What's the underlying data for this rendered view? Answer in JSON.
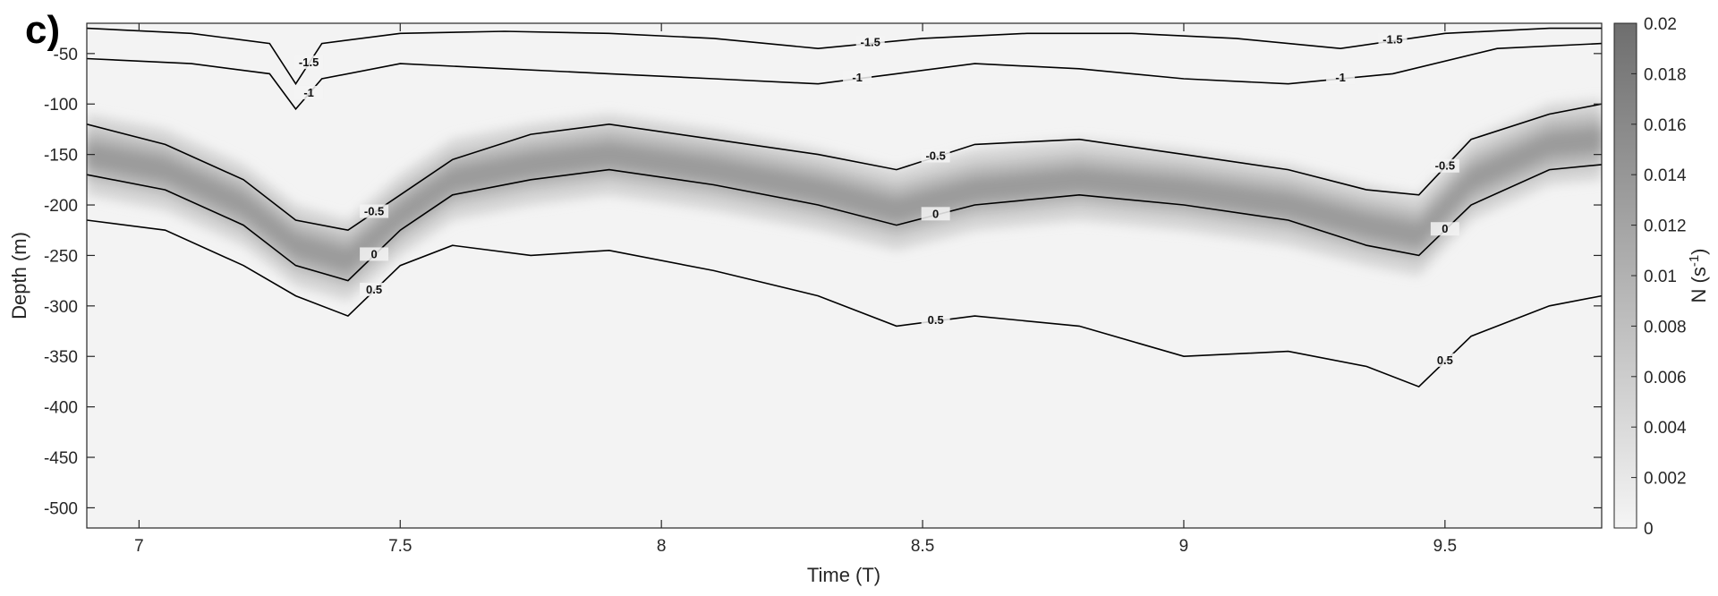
{
  "chart_data": {
    "type": "heatmap",
    "panel_label": "c)",
    "xlabel": "Time (T)",
    "ylabel": "Depth (m)",
    "xlim": [
      6.9,
      9.8
    ],
    "ylim": [
      -520,
      -20
    ],
    "x_ticks": [
      7,
      7.5,
      8,
      8.5,
      9,
      9.5
    ],
    "x_tick_labels": [
      "7",
      "7.5",
      "8",
      "8.5",
      "9",
      "9.5"
    ],
    "y_ticks": [
      -50,
      -100,
      -150,
      -200,
      -250,
      -300,
      -350,
      -400,
      -450,
      -500
    ],
    "y_tick_labels": [
      "-50",
      "-100",
      "-150",
      "-200",
      "-250",
      "-300",
      "-350",
      "-400",
      "-450",
      "-500"
    ],
    "colorbar": {
      "label": "N (s",
      "label_superscript": "-1",
      "label_close": ")",
      "range": [
        0,
        0.02
      ],
      "ticks": [
        0,
        0.002,
        0.004,
        0.006,
        0.008,
        0.01,
        0.012,
        0.014,
        0.016,
        0.018,
        0.02
      ],
      "tick_labels": [
        "0",
        "0.002",
        "0.004",
        "0.006",
        "0.008",
        "0.01",
        "0.012",
        "0.014",
        "0.016",
        "0.018",
        "0.02"
      ],
      "colors": [
        "#f5f5f5",
        "#6e6e6e"
      ]
    },
    "stratification_band": {
      "time": [
        6.9,
        7.05,
        7.2,
        7.3,
        7.4,
        7.5,
        7.6,
        7.75,
        7.9,
        8.1,
        8.3,
        8.45,
        8.6,
        8.8,
        9.0,
        9.2,
        9.35,
        9.45,
        9.55,
        9.7,
        9.8
      ],
      "center_depth": [
        -150,
        -165,
        -200,
        -240,
        -255,
        -210,
        -175,
        -160,
        -150,
        -165,
        -185,
        -205,
        -185,
        -175,
        -185,
        -200,
        -220,
        -230,
        -175,
        -140,
        -135
      ],
      "peak_N": [
        0.013,
        0.014,
        0.015,
        0.016,
        0.015,
        0.016,
        0.014,
        0.013,
        0.014,
        0.013,
        0.012,
        0.012,
        0.013,
        0.012,
        0.012,
        0.013,
        0.014,
        0.016,
        0.012,
        0.011,
        0.011
      ]
    },
    "contour_lines": [
      {
        "label": "-1.5",
        "time": [
          6.9,
          7.1,
          7.25,
          7.3,
          7.35,
          7.5,
          7.7,
          7.9,
          8.1,
          8.3,
          8.5,
          8.7,
          8.9,
          9.1,
          9.3,
          9.5,
          9.7,
          9.8
        ],
        "depth": [
          -25,
          -30,
          -40,
          -80,
          -40,
          -30,
          -28,
          -30,
          -35,
          -45,
          -35,
          -30,
          -30,
          -35,
          -45,
          -30,
          -25,
          -25
        ]
      },
      {
        "label": "-1",
        "time": [
          6.9,
          7.1,
          7.25,
          7.3,
          7.35,
          7.5,
          7.7,
          7.9,
          8.1,
          8.3,
          8.45,
          8.6,
          8.8,
          9.0,
          9.2,
          9.4,
          9.6,
          9.8
        ],
        "depth": [
          -55,
          -60,
          -70,
          -105,
          -75,
          -60,
          -65,
          -70,
          -75,
          -80,
          -70,
          -60,
          -65,
          -75,
          -80,
          -70,
          -45,
          -40
        ]
      },
      {
        "label": "-0.5",
        "time": [
          6.9,
          7.05,
          7.2,
          7.3,
          7.4,
          7.5,
          7.6,
          7.75,
          7.9,
          8.1,
          8.3,
          8.45,
          8.6,
          8.8,
          9.0,
          9.2,
          9.35,
          9.45,
          9.55,
          9.7,
          9.8
        ],
        "depth": [
          -120,
          -140,
          -175,
          -215,
          -225,
          -190,
          -155,
          -130,
          -120,
          -135,
          -150,
          -165,
          -140,
          -135,
          -150,
          -165,
          -185,
          -190,
          -135,
          -110,
          -100
        ]
      },
      {
        "label": "0",
        "time": [
          6.9,
          7.05,
          7.2,
          7.3,
          7.4,
          7.5,
          7.6,
          7.75,
          7.9,
          8.1,
          8.3,
          8.45,
          8.6,
          8.8,
          9.0,
          9.2,
          9.35,
          9.45,
          9.55,
          9.7,
          9.8
        ],
        "depth": [
          -170,
          -185,
          -220,
          -260,
          -275,
          -225,
          -190,
          -175,
          -165,
          -180,
          -200,
          -220,
          -200,
          -190,
          -200,
          -215,
          -240,
          -250,
          -200,
          -165,
          -160
        ]
      },
      {
        "label": "0.5",
        "time": [
          6.9,
          7.05,
          7.2,
          7.3,
          7.4,
          7.5,
          7.6,
          7.75,
          7.9,
          8.1,
          8.3,
          8.45,
          8.6,
          8.8,
          9.0,
          9.2,
          9.35,
          9.45,
          9.55,
          9.7,
          9.8
        ],
        "depth": [
          -215,
          -225,
          -260,
          -290,
          -310,
          -260,
          -240,
          -250,
          -245,
          -265,
          -290,
          -320,
          -310,
          -320,
          -350,
          -345,
          -360,
          -380,
          -330,
          -300,
          -290
        ]
      }
    ]
  }
}
